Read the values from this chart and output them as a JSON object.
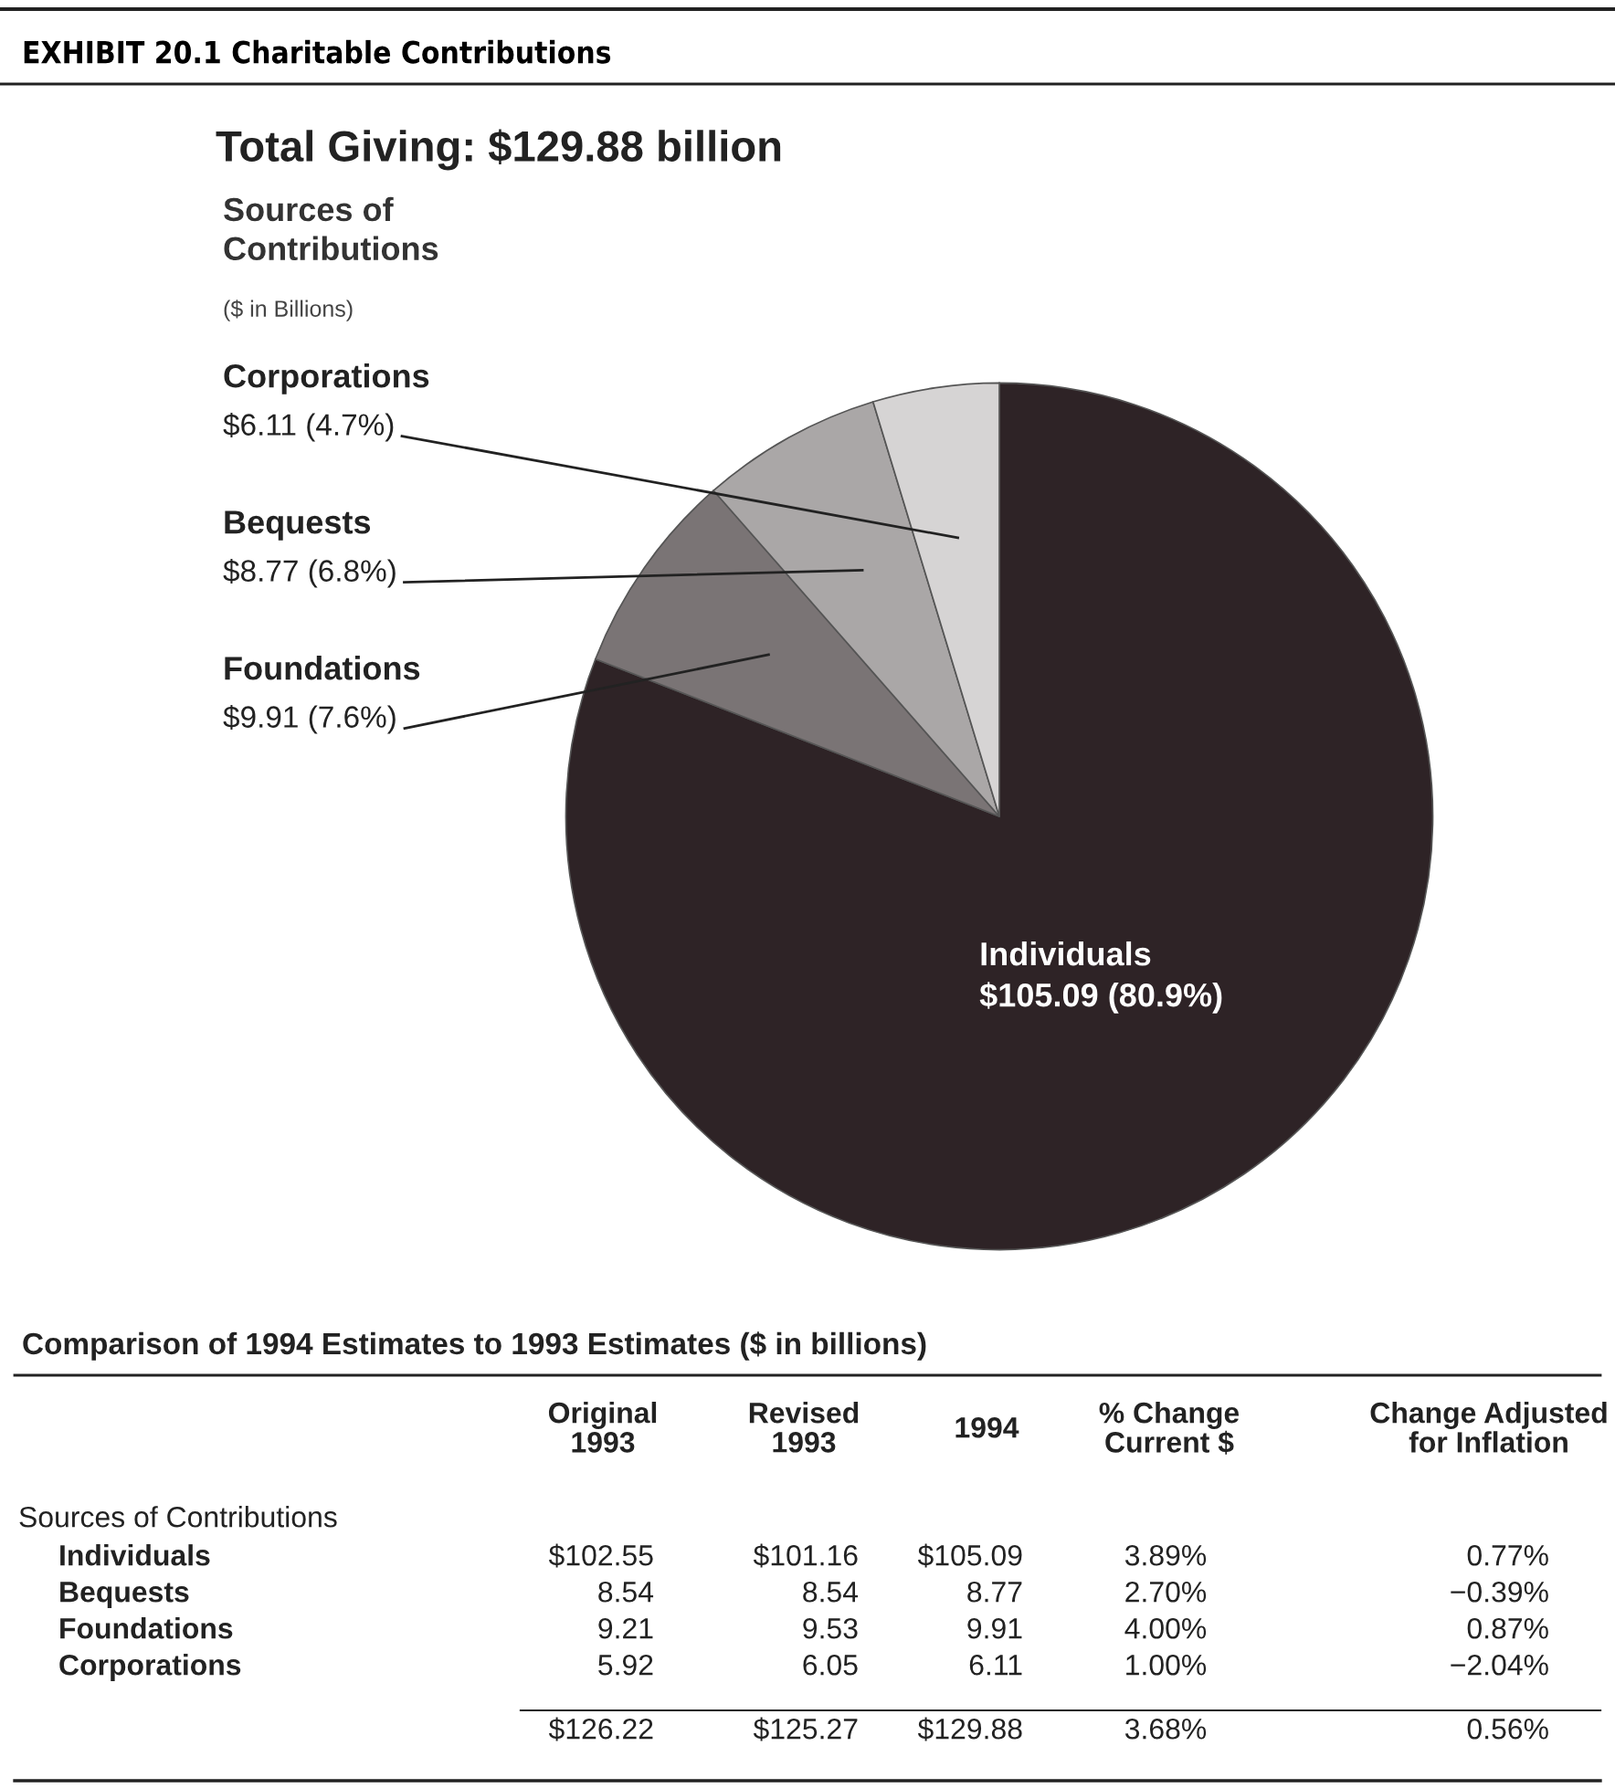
{
  "chart_data": [
    {
      "type": "pie",
      "title": "Total Giving: $129.88 billion",
      "subtitle": "Sources of\nContributions",
      "annotations": [
        "EXHIBIT 20.1 Charitable Contributions",
        "($ in Billions)"
      ],
      "categories": [
        "Individuals",
        "Foundations",
        "Bequests",
        "Corporations"
      ],
      "values": [
        105.09,
        9.91,
        8.77,
        6.11
      ],
      "colors": [
        "#2e2326",
        "#7a7475",
        "#aaa7a7",
        "#d6d4d4"
      ],
      "value_labels": [
        "$105.09 (80.9%)",
        "$9.91 (7.6%)",
        "$8.77 (6.8%)",
        "$6.11 (4.7%)"
      ]
    },
    {
      "type": "other",
      "title": "Comparison of 1994 Estimates to 1993 Estimates ($ in billions)",
      "annotations": [
        "Sources of Contributions"
      ],
      "categories": [
        "Individuals",
        "Bequests",
        "Foundations",
        "Corporations"
      ],
      "totals": [
        "$126.22",
        "$125.27",
        "$129.88",
        "3.68%",
        "0.56%"
      ],
      "series": [
        {
          "name": "Original\n1993",
          "values": [
            102.55,
            8.54,
            9.21,
            5.92
          ],
          "value_labels": [
            "$102.55",
            "8.54",
            "9.21",
            "5.92"
          ]
        },
        {
          "name": "Revised\n1993",
          "values": [
            101.16,
            8.54,
            9.53,
            6.05
          ],
          "value_labels": [
            "$101.16",
            "8.54",
            "9.53",
            "6.05"
          ]
        },
        {
          "name": "1994",
          "values": [
            105.09,
            8.77,
            9.91,
            6.11
          ],
          "value_labels": [
            "$105.09",
            "8.77",
            "9.91",
            "6.11"
          ]
        },
        {
          "name": "% Change\nCurrent $",
          "values": [
            3.89,
            2.7,
            4.0,
            1.0
          ],
          "value_labels": [
            "3.89%",
            "2.70%",
            "4.00%",
            "1.00%"
          ]
        },
        {
          "name": "Change Adjusted\nfor Inflation",
          "values": [
            0.77,
            -0.39,
            0.87,
            -2.04
          ],
          "value_labels": [
            "0.77%",
            "−0.39%",
            "0.87%",
            "−2.04%"
          ]
        }
      ]
    }
  ]
}
